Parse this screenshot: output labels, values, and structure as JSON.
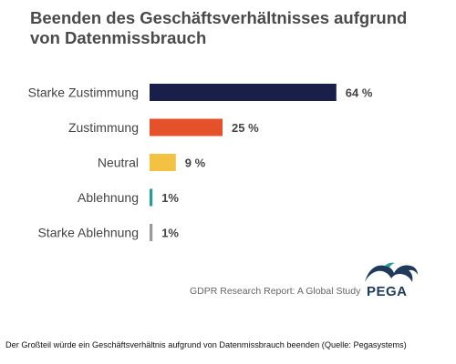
{
  "chart_data": {
    "type": "bar",
    "orientation": "horizontal",
    "title": "Beenden des Geschäftsverhältnisses aufgrund von Datenmissbrauch",
    "categories": [
      "Starke Zustimmung",
      "Zustimmung",
      "Neutral",
      "Ablehnung",
      "Starke Ablehnung"
    ],
    "values": [
      64,
      25,
      9,
      1,
      1
    ],
    "value_labels": [
      "64 %",
      "25 %",
      "9 %",
      "1%",
      "1%"
    ],
    "colors": [
      "#1a1f4a",
      "#e4512b",
      "#f4c242",
      "#2a9b97",
      "#9a9a9a"
    ],
    "xlabel": "",
    "ylabel": "",
    "grid": false,
    "legend": "none"
  },
  "source": "GDPR Research Report: A Global Study",
  "logo": {
    "text": "PEGA",
    "icon": "pega-logo-icon",
    "color": "#1f3a5a"
  },
  "caption": "Der Großteil würde ein Geschäftsverhältnis aufgrund von Datenmissbrauch beenden (Quelle: Pegasystems)"
}
